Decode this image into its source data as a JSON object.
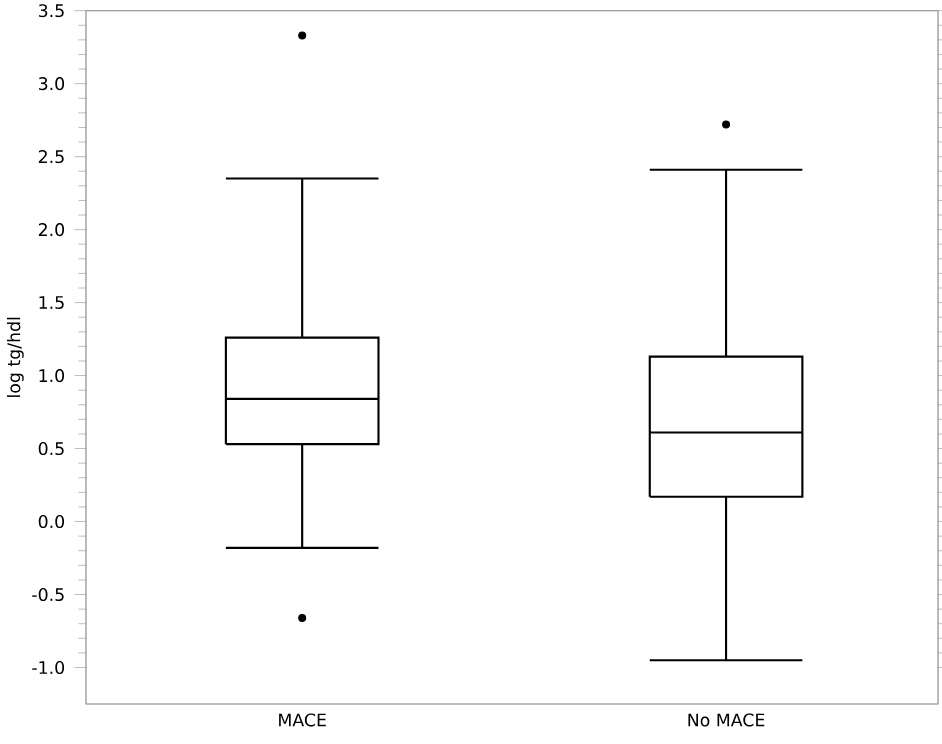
{
  "chart_data": {
    "type": "box",
    "ylabel": "log tg/hdl",
    "categories": [
      "MACE",
      "No MACE"
    ],
    "boxes": [
      {
        "low": -0.18,
        "q1": 0.53,
        "median": 0.84,
        "q3": 1.26,
        "high": 2.35,
        "outliers": [
          3.33,
          -0.66
        ]
      },
      {
        "low": -0.95,
        "q1": 0.17,
        "median": 0.61,
        "q3": 1.13,
        "high": 2.41,
        "outliers": [
          2.72
        ]
      }
    ],
    "color": "#000000",
    "ylim": [
      -1.25,
      3.5
    ],
    "yticks": [
      {
        "value": -1,
        "label": "-1.0"
      },
      {
        "value": -0.5,
        "label": "-0.5"
      },
      {
        "value": 0,
        "label": "0.0"
      },
      {
        "value": 0.5,
        "label": "0.5"
      },
      {
        "value": 1,
        "label": "1.0"
      },
      {
        "value": 1.5,
        "label": "1.5"
      },
      {
        "value": 2,
        "label": "2.0"
      },
      {
        "value": 2.5,
        "label": "2.5"
      },
      {
        "value": 3,
        "label": "3.0"
      },
      {
        "value": 3.5,
        "label": "3.5"
      }
    ],
    "grid": false
  }
}
